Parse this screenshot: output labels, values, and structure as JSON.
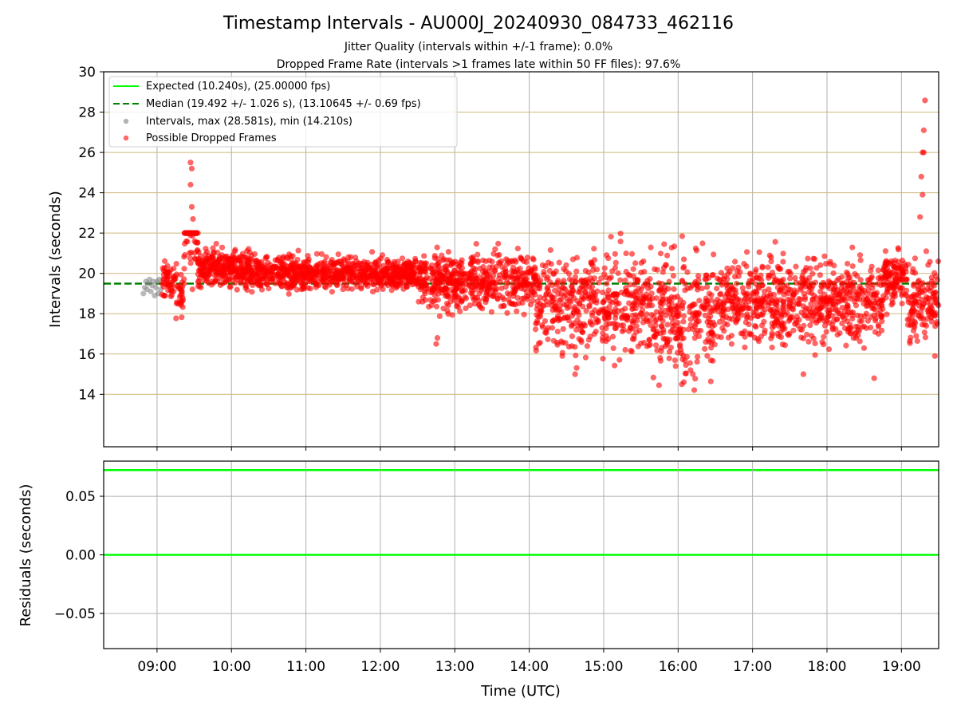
{
  "chart_data": [
    {
      "type": "scatter",
      "title": "Timestamp Intervals - AU000J_20240930_084733_462116",
      "subtitle_1": "Jitter Quality (intervals within +/-1 frame): 0.0%",
      "subtitle_2": "Dropped Frame Rate (intervals >1 frames late within 50 FF files): 97.6%",
      "xlabel": "",
      "ylabel": "Intervals (seconds)",
      "xlim": [
        "08:17",
        "19:30"
      ],
      "ylim": [
        11.4,
        30
      ],
      "yticks": [
        "14",
        "16",
        "18",
        "20",
        "22",
        "24",
        "26",
        "28",
        "30"
      ],
      "xticks": [
        "09:00",
        "10:00",
        "11:00",
        "12:00",
        "13:00",
        "14:00",
        "15:00",
        "16:00",
        "17:00",
        "18:00",
        "19:00"
      ],
      "grid": true,
      "legend_position": "top-left",
      "legend": [
        "Expected (10.240s), (25.00000 fps)",
        "Median (19.492 +/- 1.026 s), (13.10645 +/- 0.69 fps)",
        "Intervals, max (28.581s), min (14.210s)",
        "Possible Dropped Frames"
      ],
      "expected_interval": 10.24,
      "median_interval": 19.492,
      "series": [
        {
          "name": "Intervals, max (28.581s), min (14.210s)",
          "color": "#808080",
          "points": [
            [
              "08:49",
              19.0
            ],
            [
              "08:50",
              19.3
            ],
            [
              "08:51",
              19.6
            ],
            [
              "08:52",
              19.2
            ],
            [
              "08:53",
              19.5
            ],
            [
              "08:54",
              19.7
            ],
            [
              "08:55",
              19.1
            ],
            [
              "08:56",
              19.4
            ],
            [
              "08:57",
              19.6
            ],
            [
              "08:58",
              18.9
            ],
            [
              "08:59",
              19.3
            ],
            [
              "09:00",
              19.6
            ],
            [
              "09:01",
              19.0
            ],
            [
              "09:02",
              19.7
            ],
            [
              "09:03",
              19.2
            ]
          ]
        },
        {
          "name": "Possible Dropped Frames",
          "color": "#ff0000",
          "segments": [
            {
              "t0": "09:03",
              "t1": "09:13",
              "n": 45,
              "base": 19.6,
              "spread": 0.8
            },
            {
              "t0": "09:13",
              "t1": "09:22",
              "n": 40,
              "base": 19.3,
              "spread": 1.2
            },
            {
              "t0": "09:22",
              "t1": "09:33",
              "n": 55,
              "base": 22.2,
              "spread": 2.6
            },
            {
              "t0": "09:33",
              "t1": "10:15",
              "n": 300,
              "base": 20.3,
              "spread": 0.8
            },
            {
              "t0": "10:15",
              "t1": "12:30",
              "n": 780,
              "base": 20.0,
              "spread": 0.7
            },
            {
              "t0": "12:30",
              "t1": "14:05",
              "n": 520,
              "base": 19.6,
              "spread": 1.2
            },
            {
              "t0": "14:05",
              "t1": "15:40",
              "n": 470,
              "base": 18.5,
              "spread": 2.2
            },
            {
              "t0": "15:40",
              "t1": "16:30",
              "n": 260,
              "base": 18.0,
              "spread": 2.8
            },
            {
              "t0": "16:30",
              "t1": "18:45",
              "n": 700,
              "base": 18.6,
              "spread": 1.8
            },
            {
              "t0": "18:45",
              "t1": "19:05",
              "n": 120,
              "base": 19.8,
              "spread": 1.2
            },
            {
              "t0": "19:05",
              "t1": "19:30",
              "n": 130,
              "base": 18.6,
              "spread": 1.6
            }
          ],
          "extremes": [
            [
              "09:27",
              25.5
            ],
            [
              "09:28",
              25.2
            ],
            [
              "09:27",
              24.4
            ],
            [
              "09:28",
              23.3
            ],
            [
              "09:29",
              22.7
            ],
            [
              "19:19",
              28.581
            ],
            [
              "19:18",
              27.1
            ],
            [
              "19:17",
              26.0
            ],
            [
              "19:18",
              26.0
            ],
            [
              "19:16",
              24.8
            ],
            [
              "19:17",
              23.9
            ],
            [
              "19:15",
              22.8
            ],
            [
              "19:20",
              21.1
            ],
            [
              "19:27",
              15.9
            ],
            [
              "16:13",
              14.21
            ],
            [
              "16:03",
              14.5
            ],
            [
              "14:37",
              15.0
            ],
            [
              "17:41",
              15.0
            ],
            [
              "18:38",
              14.8
            ],
            [
              "12:45",
              16.5
            ],
            [
              "12:46",
              16.8
            ],
            [
              "16:10",
              15.2
            ],
            [
              "15:58",
              15.4
            ]
          ]
        }
      ]
    },
    {
      "type": "line",
      "title": "",
      "xlabel": "Time (UTC)",
      "ylabel": "Residuals (seconds)",
      "ylim": [
        -0.08,
        0.08
      ],
      "yticks": [
        "0.05",
        "0.00",
        "−0.05"
      ],
      "xticks": [
        "09:00",
        "10:00",
        "11:00",
        "12:00",
        "13:00",
        "14:00",
        "15:00",
        "16:00",
        "17:00",
        "18:00",
        "19:00"
      ],
      "grid": true,
      "series": [
        {
          "color": "#00ff00",
          "x": [
            "08:17",
            "19:30"
          ],
          "values": [
            0.0,
            0.0
          ]
        }
      ]
    }
  ]
}
